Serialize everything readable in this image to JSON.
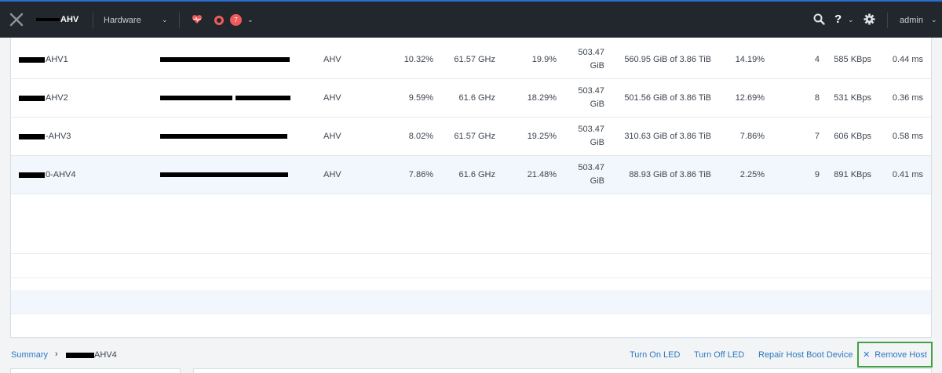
{
  "header": {
    "cluster_name": "AHV",
    "section": "Hardware",
    "alert_count": "7",
    "help": "?",
    "user": "admin",
    "icons": [
      "close-x-logo-icon",
      "heart-health-icon",
      "ring-alert-icon",
      "search-icon",
      "gear-icon"
    ]
  },
  "hosts": [
    {
      "name": "AHV1",
      "hypervisor": "AHV",
      "cpu_usage": "10.32%",
      "cpu_capacity": "61.57 GHz",
      "memory_usage": "19.9%",
      "memory_capacity": "503.47 GiB",
      "storage": "560.95 GiB of 3.86 TiB",
      "storage_pct": "14.19%",
      "vms": "4",
      "io": "585 KBps",
      "latency": "0.44 ms"
    },
    {
      "name": "AHV2",
      "hypervisor": "AHV",
      "cpu_usage": "9.59%",
      "cpu_capacity": "61.6 GHz",
      "memory_usage": "18.29%",
      "memory_capacity": "503.47 GiB",
      "storage": "501.56 GiB of 3.86 TiB",
      "storage_pct": "12.69%",
      "vms": "8",
      "io": "531 KBps",
      "latency": "0.36 ms"
    },
    {
      "name": "-AHV3",
      "hypervisor": "AHV",
      "cpu_usage": "8.02%",
      "cpu_capacity": "61.57 GHz",
      "memory_usage": "19.25%",
      "memory_capacity": "503.47 GiB",
      "storage": "310.63 GiB of 3.86 TiB",
      "storage_pct": "7.86%",
      "vms": "7",
      "io": "606 KBps",
      "latency": "0.58 ms"
    },
    {
      "name": "0-AHV4",
      "hypervisor": "AHV",
      "cpu_usage": "7.86%",
      "cpu_capacity": "61.6 GHz",
      "memory_usage": "21.48%",
      "memory_capacity": "503.47 GiB",
      "storage": "88.93 GiB of 3.86 TiB",
      "storage_pct": "2.25%",
      "vms": "9",
      "io": "891 KBps",
      "latency": "0.41 ms"
    }
  ],
  "footer": {
    "breadcrumb_root": "Summary",
    "breadcrumb_current": "AHV4",
    "actions": {
      "turn_on_led": "Turn On LED",
      "turn_off_led": "Turn Off LED",
      "repair_boot": "Repair Host Boot Device",
      "remove_host": "Remove Host"
    }
  },
  "colors": {
    "topbar": "#22272e",
    "accent": "#2e79c2",
    "alert": "#ef5a5a",
    "highlight": "#43a047"
  }
}
